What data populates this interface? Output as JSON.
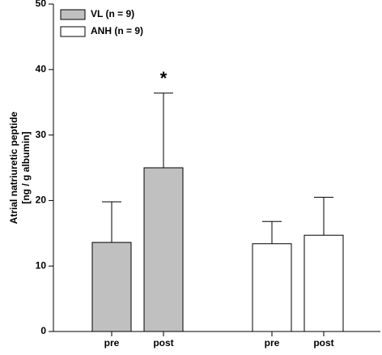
{
  "chart_data": {
    "type": "bar",
    "categories": [
      "pre",
      "post",
      "pre",
      "post"
    ],
    "series": [
      {
        "name": "VL (n = 9)",
        "color": "#c0c0c0",
        "values": [
          13.6,
          25.0,
          null,
          null
        ],
        "errors": [
          6.2,
          11.4,
          null,
          null
        ]
      },
      {
        "name": "ANH (n = 9)",
        "color": "#ffffff",
        "values": [
          null,
          null,
          13.4,
          14.7
        ],
        "errors": [
          null,
          null,
          3.4,
          5.8
        ]
      }
    ],
    "ylabel": [
      "Atrial natriuretic peptide",
      "[ng / g albumin]"
    ],
    "annotation": "*",
    "ylim": [
      0,
      50
    ],
    "yticks": [
      0,
      10,
      20,
      30,
      40,
      50
    ],
    "legend": "upper-left",
    "grid": false
  }
}
